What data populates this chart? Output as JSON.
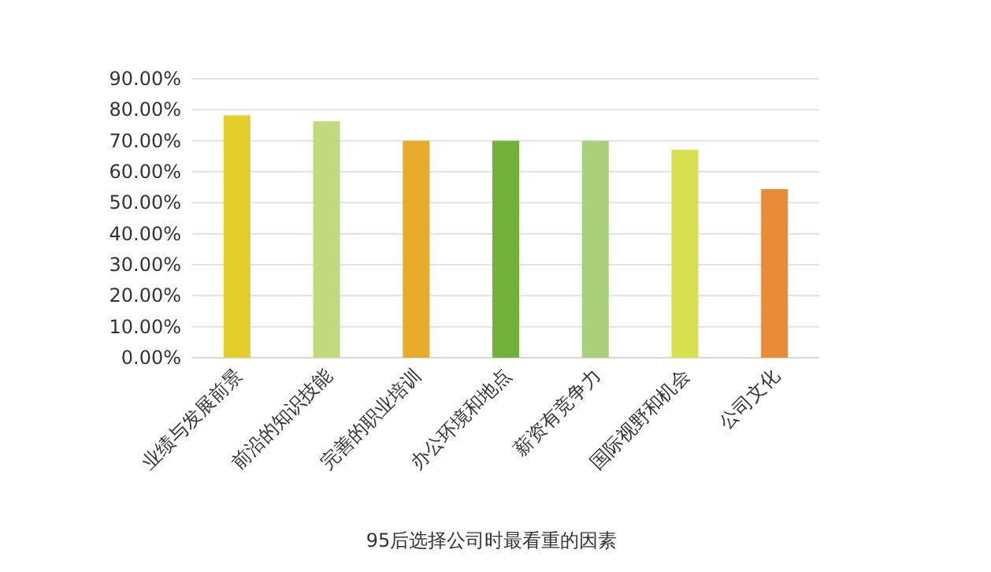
{
  "chart_data": {
    "type": "bar",
    "xlabel": "95后选择公司时最看重的因素",
    "categories": [
      "业绩与发展前景",
      "前沿的知识技能",
      "完善的职业培训",
      "办公环境和地点",
      "薪资有竞争力",
      "国际视野和机会",
      "公司文化"
    ],
    "values": [
      78.2,
      76.3,
      70,
      70,
      70,
      67.1,
      54.4
    ],
    "colors": [
      "#e4cf2a",
      "#c3d97e",
      "#e9ab2c",
      "#72b23a",
      "#a9d07a",
      "#d9e04e",
      "#e68d35"
    ],
    "ylim": [
      0,
      90
    ],
    "yticks": [
      {
        "value": 0,
        "label": "0.00%"
      },
      {
        "value": 10,
        "label": "10.00%"
      },
      {
        "value": 20,
        "label": "20.00%"
      },
      {
        "value": 30,
        "label": "30.00%"
      },
      {
        "value": 40,
        "label": "40.00%"
      },
      {
        "value": 50,
        "label": "50.00%"
      },
      {
        "value": 60,
        "label": "60.00%"
      },
      {
        "value": 70,
        "label": "70.00%"
      },
      {
        "value": 80,
        "label": "80.00%"
      },
      {
        "value": 90,
        "label": "90.00%"
      }
    ],
    "grid": "y"
  }
}
